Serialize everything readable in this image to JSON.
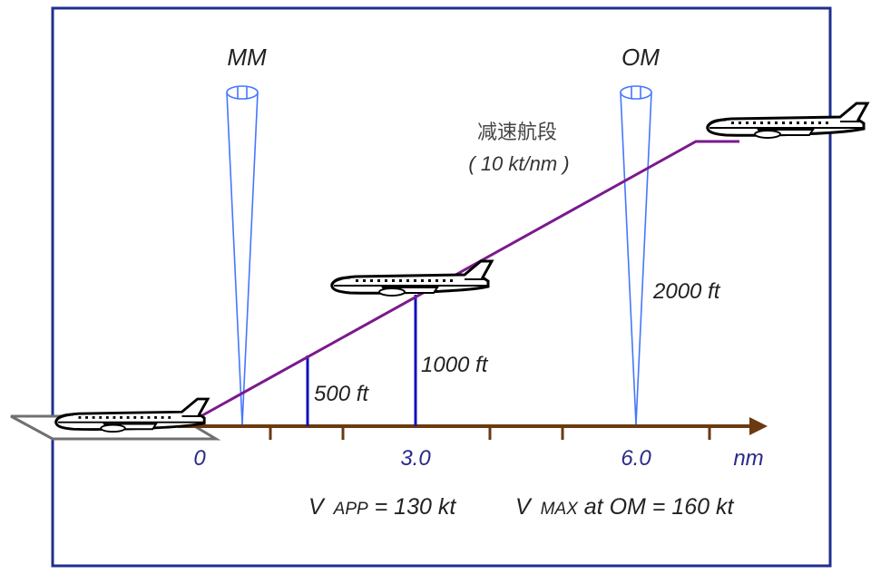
{
  "markers": {
    "mm": "MM",
    "om": "OM"
  },
  "segment": {
    "name": "减速航段",
    "rate": "( 10 kt/nm )"
  },
  "altitudes": {
    "a500": "500 ft",
    "a1000": "1000 ft",
    "a2000": "2000 ft"
  },
  "axis": {
    "t0": "0",
    "t3": "3.0",
    "t6": "6.0",
    "unit": "nm"
  },
  "speeds": {
    "v_app": "V",
    "v_app_sub": "APP",
    "v_app_val": " = 130 kt",
    "v_max": "V",
    "v_max_sub": "MAX",
    "v_max_val": " at OM = 160 kt"
  },
  "colors": {
    "frame": "#1f2f8f",
    "axis": "#6b3a10",
    "path": "#7a1a8c",
    "beacon": "#4477ff",
    "height_line": "#1010c0",
    "tick_label": "#2a2a8a"
  }
}
